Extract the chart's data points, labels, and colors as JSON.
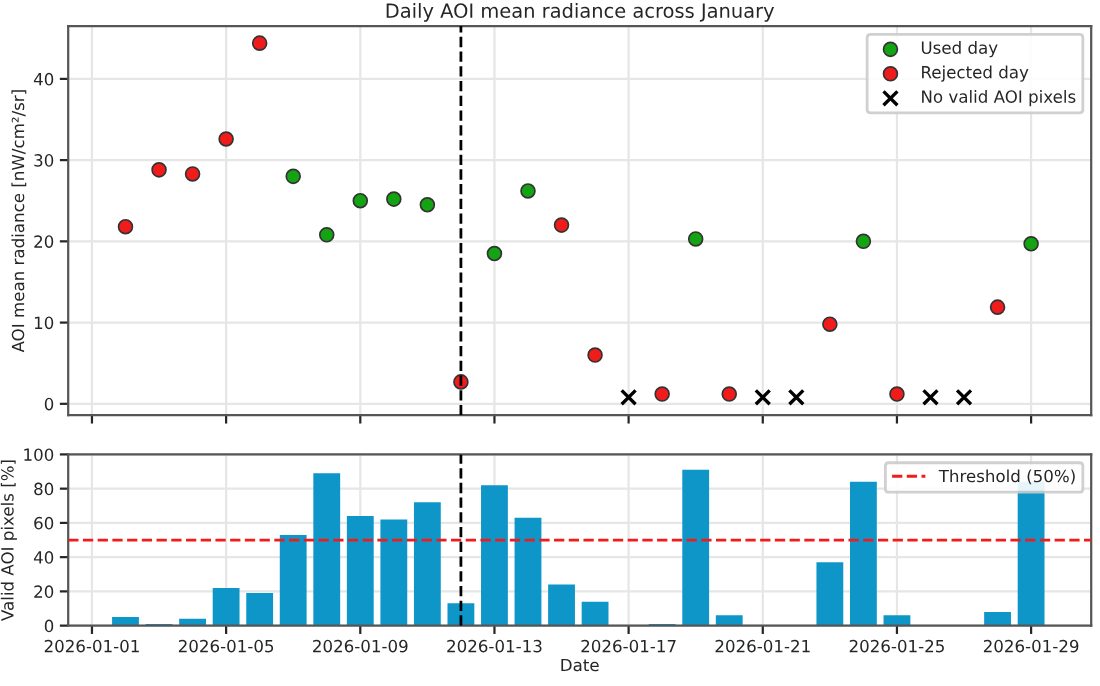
{
  "chart_data": [
    {
      "type": "scatter",
      "title": "Daily AOI mean radiance across January",
      "ylabel": "AOI mean radiance [nW/cm²/sr]",
      "series": [
        {
          "name": "Used day",
          "color": "#13a313",
          "marker": "circle",
          "x": [
            "2026-01-07",
            "2026-01-08",
            "2026-01-09",
            "2026-01-10",
            "2026-01-11",
            "2026-01-13",
            "2026-01-14",
            "2026-01-19",
            "2026-01-24",
            "2026-01-29"
          ],
          "values": [
            28.0,
            20.8,
            25.0,
            25.2,
            24.5,
            18.5,
            26.2,
            20.3,
            20.0,
            19.7
          ]
        },
        {
          "name": "Rejected day",
          "color": "#f01c1c",
          "marker": "circle",
          "x": [
            "2026-01-02",
            "2026-01-03",
            "2026-01-04",
            "2026-01-05",
            "2026-01-06",
            "2026-01-12",
            "2026-01-15",
            "2026-01-16",
            "2026-01-18",
            "2026-01-20",
            "2026-01-23",
            "2026-01-25",
            "2026-01-28"
          ],
          "values": [
            21.8,
            28.8,
            28.3,
            32.6,
            44.4,
            2.7,
            22.0,
            6.0,
            1.2,
            1.2,
            9.8,
            1.2,
            11.9
          ]
        },
        {
          "name": "No valid AOI pixels",
          "color": "#000000",
          "marker": "cross",
          "x": [
            "2026-01-17",
            "2026-01-21",
            "2026-01-22",
            "2026-01-26",
            "2026-01-27"
          ],
          "values": [
            0.8,
            0.8,
            0.8,
            0.8,
            0.8
          ]
        }
      ],
      "xlim": [
        "2025-12-31T07:00",
        "2026-01-30T19:00"
      ],
      "xticks": [
        "2026-01-01",
        "2026-01-05",
        "2026-01-09",
        "2026-01-13",
        "2026-01-17",
        "2026-01-21",
        "2026-01-25",
        "2026-01-29"
      ],
      "ylim": [
        -1.4,
        46.5
      ],
      "yticks": [
        0,
        10,
        20,
        30,
        40
      ],
      "tick_labels": "y",
      "grid": true,
      "legend": "top right",
      "ref_lines": [
        {
          "axis": "x",
          "value": "2026-01-12",
          "color": "#000000",
          "line_style": "dashed"
        }
      ]
    },
    {
      "type": "bar",
      "xlabel": "Date",
      "ylabel": "Valid AOI pixels [%]",
      "color": "#0e96c9",
      "x": [
        "2026-01-02",
        "2026-01-03",
        "2026-01-04",
        "2026-01-05",
        "2026-01-06",
        "2026-01-07",
        "2026-01-08",
        "2026-01-09",
        "2026-01-10",
        "2026-01-11",
        "2026-01-12",
        "2026-01-13",
        "2026-01-14",
        "2026-01-15",
        "2026-01-16",
        "2026-01-17",
        "2026-01-18",
        "2026-01-19",
        "2026-01-20",
        "2026-01-21",
        "2026-01-22",
        "2026-01-23",
        "2026-01-24",
        "2026-01-25",
        "2026-01-26",
        "2026-01-27",
        "2026-01-28",
        "2026-01-29"
      ],
      "values": [
        5,
        1,
        4,
        22,
        19,
        53,
        89,
        64,
        62,
        72,
        13,
        82,
        63,
        24,
        14,
        0,
        1,
        91,
        6,
        0,
        0,
        37,
        84,
        6,
        0,
        0,
        8,
        84
      ],
      "xlim": [
        "2025-12-31T07:00",
        "2026-01-30T19:00"
      ],
      "xticks": [
        "2026-01-01",
        "2026-01-05",
        "2026-01-09",
        "2026-01-13",
        "2026-01-17",
        "2026-01-21",
        "2026-01-25",
        "2026-01-29"
      ],
      "ylim": [
        0,
        100
      ],
      "yticks": [
        0,
        20,
        40,
        60,
        80,
        100
      ],
      "grid": true,
      "legend": "top right",
      "ref_lines": [
        {
          "axis": "y",
          "value": 50,
          "label": "Threshold (50%)",
          "color": "#f01c1c",
          "line_style": "dashed"
        },
        {
          "axis": "x",
          "value": "2026-01-12",
          "color": "#000000",
          "line_style": "dashed"
        }
      ]
    }
  ]
}
